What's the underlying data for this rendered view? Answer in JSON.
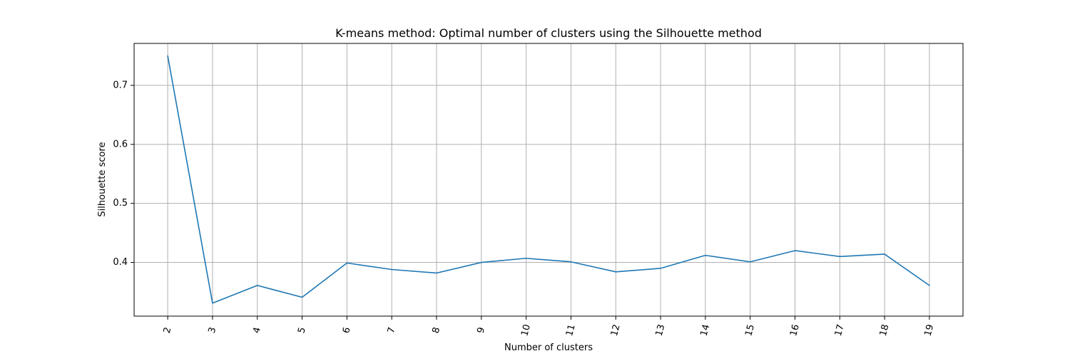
{
  "chart_data": {
    "type": "line",
    "title": "K-means method: Optimal number of clusters using the Silhouette method",
    "xlabel": "Number of clusters",
    "ylabel": "Silhouette score",
    "x": [
      2,
      3,
      4,
      5,
      6,
      7,
      8,
      9,
      10,
      11,
      12,
      13,
      14,
      15,
      16,
      17,
      18,
      19
    ],
    "xticks": [
      "2",
      "3",
      "4",
      "5",
      "6",
      "7",
      "8",
      "9",
      "10",
      "11",
      "12",
      "13",
      "14",
      "15",
      "16",
      "17",
      "18",
      "19"
    ],
    "xtick_rotation": "75 degrees",
    "xlim": [
      1.25,
      19.75
    ],
    "yticks": [
      0.4,
      0.5,
      0.6,
      0.7
    ],
    "ylim": [
      0.309,
      0.771
    ],
    "grid": true,
    "series": [
      {
        "color": "#1f77b4",
        "values": [
          0.75,
          0.331,
          0.361,
          0.341,
          0.399,
          0.388,
          0.382,
          0.4,
          0.407,
          0.401,
          0.384,
          0.39,
          0.412,
          0.401,
          0.42,
          0.41,
          0.414,
          0.361
        ]
      }
    ]
  }
}
